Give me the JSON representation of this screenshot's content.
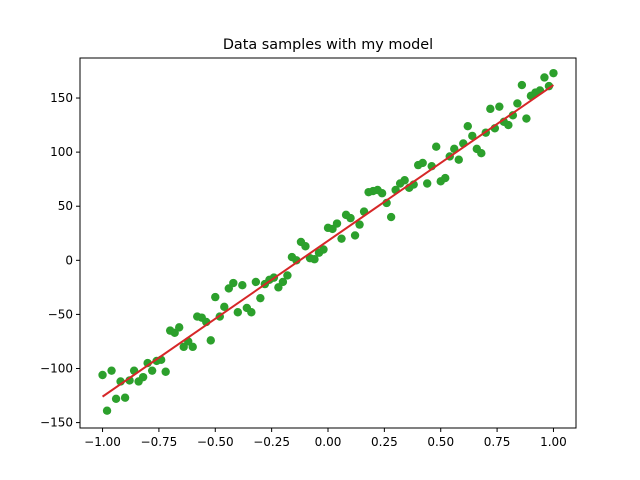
{
  "chart_data": {
    "type": "scatter",
    "title": "Data samples with my model",
    "xlabel": "",
    "ylabel": "",
    "xlim": [
      -1.1,
      1.1
    ],
    "ylim": [
      -155,
      187
    ],
    "xticks": [
      -1.0,
      -0.75,
      -0.5,
      -0.25,
      0.0,
      0.25,
      0.5,
      0.75,
      1.0
    ],
    "xtick_labels": [
      "−1.00",
      "−0.75",
      "−0.50",
      "−0.25",
      "0.00",
      "0.25",
      "0.50",
      "0.75",
      "1.00"
    ],
    "yticks": [
      -150,
      -100,
      -50,
      0,
      50,
      100,
      150
    ],
    "ytick_labels": [
      "−150",
      "−100",
      "−50",
      "0",
      "50",
      "100",
      "150"
    ],
    "grid": false,
    "series": [
      {
        "type": "scatter",
        "color": "#2ca02c",
        "points": [
          [
            -1.0,
            -106
          ],
          [
            -0.98,
            -139
          ],
          [
            -0.96,
            -102
          ],
          [
            -0.94,
            -128
          ],
          [
            -0.92,
            -112
          ],
          [
            -0.9,
            -127
          ],
          [
            -0.88,
            -111
          ],
          [
            -0.86,
            -102
          ],
          [
            -0.84,
            -112
          ],
          [
            -0.82,
            -108
          ],
          [
            -0.8,
            -95
          ],
          [
            -0.78,
            -102
          ],
          [
            -0.76,
            -93
          ],
          [
            -0.74,
            -92
          ],
          [
            -0.72,
            -103
          ],
          [
            -0.7,
            -65
          ],
          [
            -0.68,
            -67
          ],
          [
            -0.66,
            -62
          ],
          [
            -0.64,
            -80
          ],
          [
            -0.62,
            -75
          ],
          [
            -0.6,
            -80
          ],
          [
            -0.58,
            -52
          ],
          [
            -0.56,
            -53
          ],
          [
            -0.54,
            -57
          ],
          [
            -0.52,
            -74
          ],
          [
            -0.5,
            -34
          ],
          [
            -0.48,
            -52
          ],
          [
            -0.46,
            -43
          ],
          [
            -0.44,
            -26
          ],
          [
            -0.42,
            -21
          ],
          [
            -0.4,
            -48
          ],
          [
            -0.38,
            -23
          ],
          [
            -0.36,
            -44
          ],
          [
            -0.34,
            -48
          ],
          [
            -0.32,
            -20
          ],
          [
            -0.3,
            -35
          ],
          [
            -0.28,
            -22
          ],
          [
            -0.26,
            -18
          ],
          [
            -0.24,
            -16
          ],
          [
            -0.22,
            -25
          ],
          [
            -0.2,
            -20
          ],
          [
            -0.18,
            -14
          ],
          [
            -0.16,
            3
          ],
          [
            -0.14,
            0
          ],
          [
            -0.12,
            17
          ],
          [
            -0.1,
            13
          ],
          [
            -0.08,
            2
          ],
          [
            -0.06,
            1
          ],
          [
            -0.04,
            7
          ],
          [
            -0.02,
            10
          ],
          [
            0.0,
            30
          ],
          [
            0.02,
            29
          ],
          [
            0.04,
            34
          ],
          [
            0.06,
            20
          ],
          [
            0.08,
            42
          ],
          [
            0.1,
            39
          ],
          [
            0.12,
            23
          ],
          [
            0.14,
            33
          ],
          [
            0.16,
            45
          ],
          [
            0.18,
            63
          ],
          [
            0.2,
            64
          ],
          [
            0.22,
            65
          ],
          [
            0.24,
            62
          ],
          [
            0.26,
            53
          ],
          [
            0.28,
            40
          ],
          [
            0.3,
            65
          ],
          [
            0.32,
            71
          ],
          [
            0.34,
            74
          ],
          [
            0.36,
            67
          ],
          [
            0.38,
            70
          ],
          [
            0.4,
            88
          ],
          [
            0.42,
            90
          ],
          [
            0.44,
            71
          ],
          [
            0.46,
            87
          ],
          [
            0.48,
            105
          ],
          [
            0.5,
            73
          ],
          [
            0.52,
            76
          ],
          [
            0.54,
            96
          ],
          [
            0.56,
            103
          ],
          [
            0.58,
            93
          ],
          [
            0.6,
            108
          ],
          [
            0.62,
            124
          ],
          [
            0.64,
            115
          ],
          [
            0.66,
            103
          ],
          [
            0.68,
            99
          ],
          [
            0.7,
            118
          ],
          [
            0.72,
            140
          ],
          [
            0.74,
            122
          ],
          [
            0.76,
            142
          ],
          [
            0.78,
            128
          ],
          [
            0.8,
            125
          ],
          [
            0.82,
            134
          ],
          [
            0.84,
            145
          ],
          [
            0.86,
            162
          ],
          [
            0.88,
            131
          ],
          [
            0.9,
            152
          ],
          [
            0.92,
            155
          ],
          [
            0.94,
            157
          ],
          [
            0.96,
            169
          ],
          [
            0.98,
            161
          ],
          [
            1.0,
            173
          ]
        ]
      },
      {
        "type": "line",
        "color": "#d62728",
        "points": [
          [
            -1.0,
            -126
          ],
          [
            1.0,
            162
          ]
        ]
      }
    ]
  }
}
